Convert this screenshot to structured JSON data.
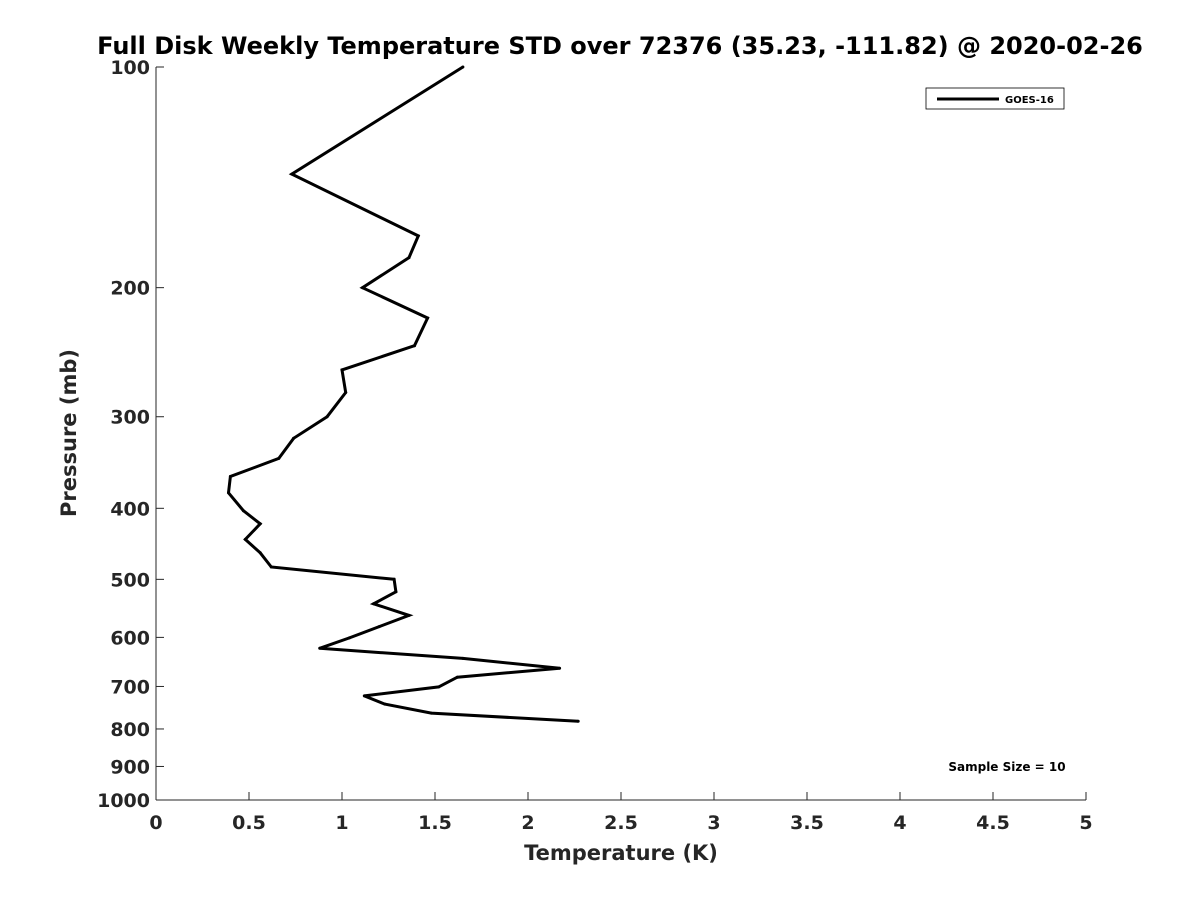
{
  "chart_data": {
    "type": "line",
    "title": "Full Disk Weekly Temperature STD over 72376 (35.23, -111.82) @ 2020-02-26",
    "xlabel": "Temperature (K)",
    "ylabel": "Pressure (mb)",
    "xlim": [
      0,
      5
    ],
    "ylim": [
      100,
      1000
    ],
    "y_scale": "log",
    "y_reversed": true,
    "grid": false,
    "legend_position": "top-right",
    "x_ticks": [
      "0",
      "0.5",
      "1",
      "1.5",
      "2",
      "2.5",
      "3",
      "3.5",
      "4",
      "4.5",
      "5"
    ],
    "y_ticks": [
      "100",
      "200",
      "300",
      "400",
      "500",
      "600",
      "700",
      "800",
      "900",
      "1000"
    ],
    "series": [
      {
        "name": "GOES-16",
        "color": "#000000",
        "points": [
          {
            "x": 1.65,
            "y": 100
          },
          {
            "x": 0.73,
            "y": 140
          },
          {
            "x": 1.41,
            "y": 170
          },
          {
            "x": 1.36,
            "y": 182
          },
          {
            "x": 1.11,
            "y": 200
          },
          {
            "x": 1.46,
            "y": 220
          },
          {
            "x": 1.39,
            "y": 240
          },
          {
            "x": 1.0,
            "y": 259
          },
          {
            "x": 1.02,
            "y": 278
          },
          {
            "x": 0.92,
            "y": 300
          },
          {
            "x": 0.74,
            "y": 321
          },
          {
            "x": 0.66,
            "y": 342
          },
          {
            "x": 0.4,
            "y": 362
          },
          {
            "x": 0.39,
            "y": 381
          },
          {
            "x": 0.47,
            "y": 403
          },
          {
            "x": 0.56,
            "y": 420
          },
          {
            "x": 0.48,
            "y": 441
          },
          {
            "x": 0.56,
            "y": 460
          },
          {
            "x": 0.62,
            "y": 481
          },
          {
            "x": 1.28,
            "y": 500
          },
          {
            "x": 1.29,
            "y": 520
          },
          {
            "x": 1.17,
            "y": 540
          },
          {
            "x": 1.36,
            "y": 560
          },
          {
            "x": 1.2,
            "y": 580
          },
          {
            "x": 1.04,
            "y": 601
          },
          {
            "x": 0.88,
            "y": 621
          },
          {
            "x": 1.65,
            "y": 641
          },
          {
            "x": 2.17,
            "y": 661
          },
          {
            "x": 1.62,
            "y": 680
          },
          {
            "x": 1.52,
            "y": 701
          },
          {
            "x": 1.12,
            "y": 721
          },
          {
            "x": 1.23,
            "y": 740
          },
          {
            "x": 1.48,
            "y": 761
          },
          {
            "x": 2.27,
            "y": 781
          }
        ]
      }
    ],
    "annotation": "Sample Size = 10"
  }
}
